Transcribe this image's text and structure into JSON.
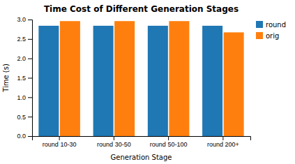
{
  "chart_data": {
    "type": "bar",
    "title": "Time Cost of Different Generation Stages",
    "xlabel": "Generation Stage",
    "ylabel": "Time (s)",
    "categories": [
      "round 10-30",
      "round 30-50",
      "round 50-100",
      "round 200+"
    ],
    "series": [
      {
        "name": "round",
        "color": "#1f77b4",
        "values": [
          2.84,
          2.84,
          2.84,
          2.84
        ]
      },
      {
        "name": "orig",
        "color": "#ff7f0e",
        "values": [
          2.96,
          2.96,
          2.96,
          2.67
        ]
      }
    ],
    "ylim": [
      0,
      3.0
    ],
    "yticks": [
      {
        "value": 0.0,
        "label": "0.0"
      },
      0.5,
      {
        "value": 1.0,
        "label": "1.0"
      },
      1.5,
      {
        "value": 2.0,
        "label": "2.0"
      },
      2.5,
      {
        "value": 3.0,
        "label": "3.0"
      }
    ],
    "legend": "upper-right"
  }
}
